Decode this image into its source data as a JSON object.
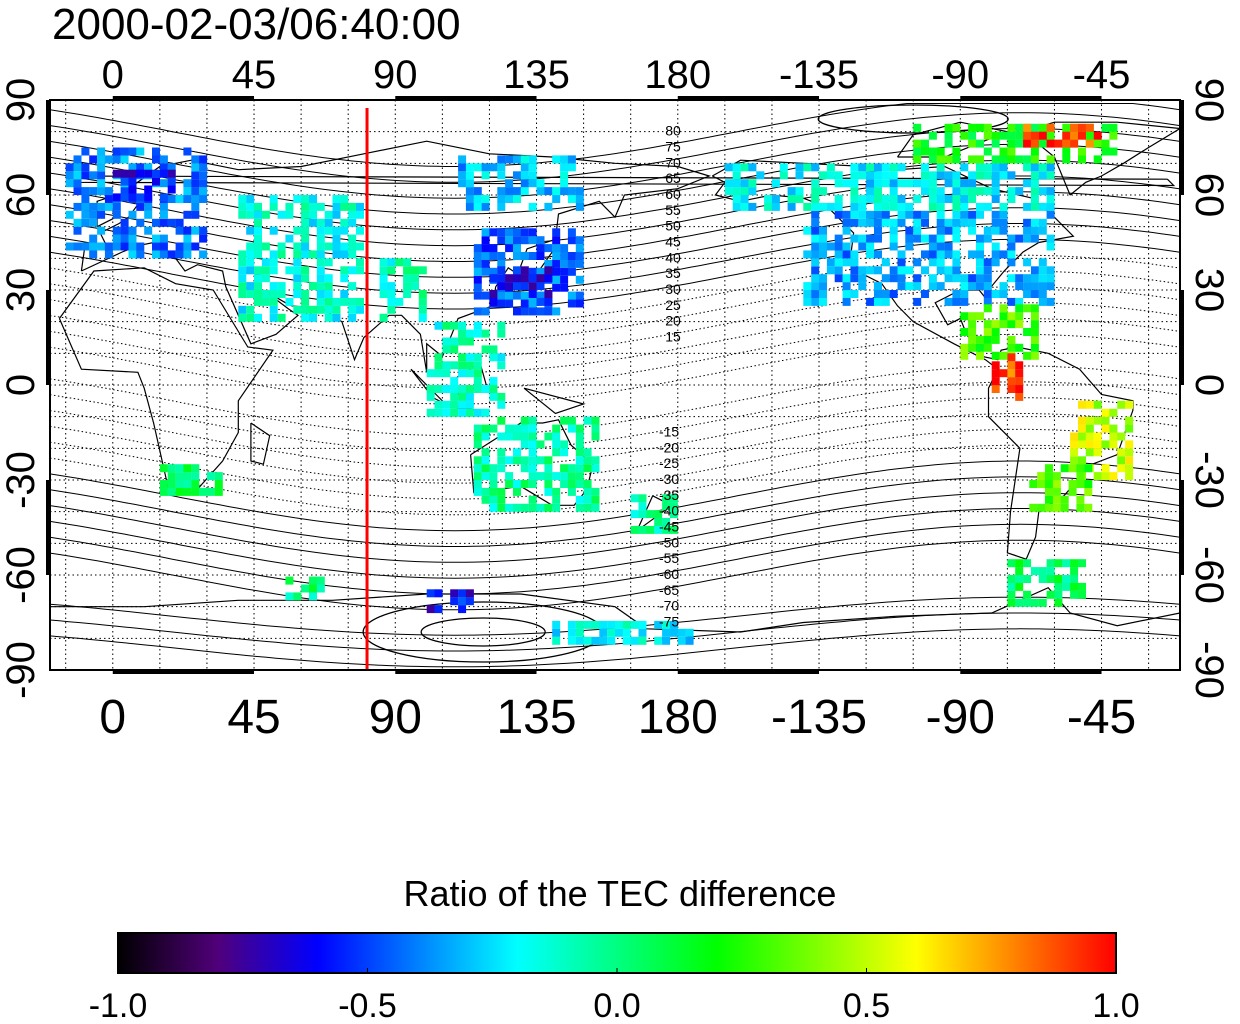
{
  "title": "2000-02-03/06:40:00",
  "map": {
    "x_tick_labels": [
      "0",
      "45",
      "90",
      "135",
      "180",
      "-135",
      "-90",
      "-45"
    ],
    "x_tick_lons": [
      0,
      45,
      90,
      135,
      180,
      225,
      270,
      315
    ],
    "y_tick_labels": [
      "90",
      "60",
      "30",
      "0",
      "-30",
      "-60",
      "-90"
    ],
    "y_tick_lats": [
      90,
      60,
      30,
      0,
      -30,
      -60,
      -90
    ],
    "lon_range": [
      -20,
      340
    ],
    "lat_range": [
      -90,
      90
    ],
    "marker_line": {
      "lon": 81,
      "color": "#ff0000"
    },
    "contour_labels_north": [
      "80",
      "75",
      "70",
      "65",
      "60",
      "55",
      "50",
      "45",
      "40",
      "35",
      "30",
      "25",
      "20",
      "15"
    ],
    "contour_labels_south": [
      "-15",
      "-20",
      "-25",
      "-30",
      "-35",
      "-40",
      "-45",
      "-50",
      "-55",
      "-60",
      "-65",
      "-70",
      "-75"
    ]
  },
  "colorbar": {
    "title": "Ratio of the TEC difference",
    "tick_labels": [
      "-1.0",
      "-0.5",
      "0.0",
      "0.5",
      "1.0"
    ],
    "tick_values": [
      -1.0,
      -0.5,
      0.0,
      0.5,
      1.0
    ],
    "range": [
      -1.0,
      1.0
    ],
    "colormap": [
      "#000000",
      "#50007a",
      "#0000ff",
      "#0080ff",
      "#00ffff",
      "#00ff80",
      "#00ff00",
      "#80ff00",
      "#ffff00",
      "#ff8000",
      "#ff0000"
    ]
  },
  "chart_data": {
    "type": "heatmap",
    "title": "2000-02-03/06:40:00",
    "xlim": [
      -20,
      340
    ],
    "ylim": [
      -90,
      90
    ],
    "value_range": [
      -1.0,
      1.0
    ],
    "regions": [
      {
        "lon_min": -15,
        "lon_max": 30,
        "lat_min": 40,
        "lat_max": 75,
        "value": -0.4
      },
      {
        "lon_min": 0,
        "lon_max": 20,
        "lat_min": 58,
        "lat_max": 68,
        "value": -0.6
      },
      {
        "lon_min": 40,
        "lon_max": 80,
        "lat_min": 20,
        "lat_max": 60,
        "value": -0.15
      },
      {
        "lon_min": 85,
        "lon_max": 100,
        "lat_min": 20,
        "lat_max": 40,
        "value": -0.1
      },
      {
        "lon_min": 115,
        "lon_max": 150,
        "lat_min": 22,
        "lat_max": 48,
        "value": -0.45
      },
      {
        "lon_min": 120,
        "lon_max": 140,
        "lat_min": 25,
        "lat_max": 36,
        "value": -0.6
      },
      {
        "lon_min": 110,
        "lon_max": 150,
        "lat_min": 55,
        "lat_max": 72,
        "value": -0.3
      },
      {
        "lon_min": 100,
        "lon_max": 125,
        "lat_min": -10,
        "lat_max": 20,
        "value": -0.1
      },
      {
        "lon_min": 115,
        "lon_max": 155,
        "lat_min": -40,
        "lat_max": -12,
        "value": -0.05
      },
      {
        "lon_min": 165,
        "lon_max": 180,
        "lat_min": -47,
        "lat_max": -35,
        "value": -0.05
      },
      {
        "lon_min": 15,
        "lon_max": 35,
        "lat_min": -35,
        "lat_max": -25,
        "value": 0.05
      },
      {
        "lon_min": 220,
        "lon_max": 300,
        "lat_min": 25,
        "lat_max": 55,
        "value": -0.35
      },
      {
        "lon_min": 195,
        "lon_max": 300,
        "lat_min": 55,
        "lat_max": 70,
        "value": -0.2
      },
      {
        "lon_min": 255,
        "lon_max": 320,
        "lat_min": 70,
        "lat_max": 82,
        "value": 0.2
      },
      {
        "lon_min": 290,
        "lon_max": 315,
        "lat_min": 75,
        "lat_max": 82,
        "value": 0.9
      },
      {
        "lon_min": 270,
        "lon_max": 295,
        "lat_min": 8,
        "lat_max": 25,
        "value": 0.3
      },
      {
        "lon_min": 280,
        "lon_max": 290,
        "lat_min": -5,
        "lat_max": 10,
        "value": 0.9
      },
      {
        "lon_min": 305,
        "lon_max": 325,
        "lat_min": -30,
        "lat_max": -5,
        "value": 0.5
      },
      {
        "lon_min": 292,
        "lon_max": 310,
        "lat_min": -40,
        "lat_max": -25,
        "value": 0.3
      },
      {
        "lon_min": 285,
        "lon_max": 310,
        "lat_min": -70,
        "lat_max": -55,
        "value": 0.05
      },
      {
        "lon_min": 140,
        "lon_max": 185,
        "lat_min": -82,
        "lat_max": -75,
        "value": -0.2
      },
      {
        "lon_min": 100,
        "lon_max": 115,
        "lat_min": -72,
        "lat_max": -66,
        "value": -0.6
      },
      {
        "lon_min": 55,
        "lon_max": 70,
        "lat_min": -68,
        "lat_max": -62,
        "value": 0.0
      }
    ]
  }
}
